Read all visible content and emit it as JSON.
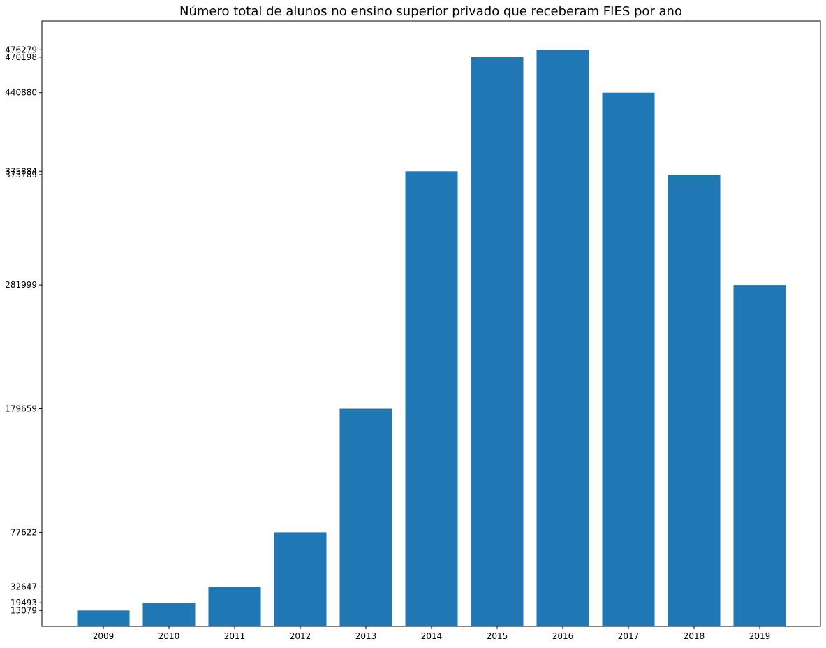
{
  "chart_data": {
    "type": "bar",
    "title": "Número total de alunos no ensino superior privado que receberam FIES por ano",
    "xlabel": "",
    "ylabel": "",
    "categories": [
      "2009",
      "2010",
      "2011",
      "2012",
      "2013",
      "2014",
      "2015",
      "2016",
      "2017",
      "2018",
      "2019"
    ],
    "values": [
      13079,
      19493,
      32647,
      77622,
      179659,
      375884,
      470198,
      476279,
      440880,
      373189,
      281999
    ],
    "yticks": [
      13079,
      19493,
      32647,
      77622,
      179659,
      281999,
      373189,
      375884,
      440880,
      470198,
      476279
    ],
    "ytick_labels": [
      "13079",
      "19493",
      "32647",
      "77622",
      "179659",
      "281999",
      "373189",
      "375884",
      "440880",
      "470198",
      "476279"
    ],
    "ylim": [
      0,
      500092
    ],
    "grid": false,
    "legend": "none",
    "bar_color": "#1f77b4"
  }
}
